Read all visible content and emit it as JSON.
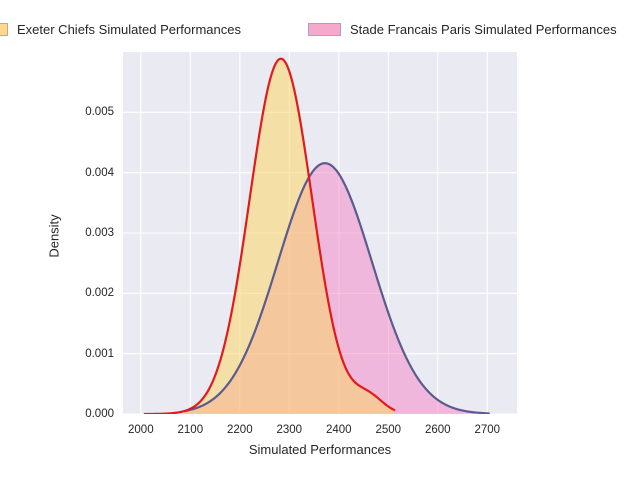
{
  "legend": {
    "items": [
      {
        "label": "Exeter Chiefs Simulated Performances",
        "swatch_fill": "#fcd98e",
        "swatch_border": "#f19089"
      },
      {
        "label": "Stade Francais Paris Simulated Performances",
        "swatch_fill": "#f7a9cb",
        "swatch_border": "#aba1c6"
      }
    ]
  },
  "chart_data": {
    "type": "area",
    "subtype": "kde-density",
    "title": "",
    "xlabel": "Simulated Performances",
    "ylabel": "Density",
    "x_ticks": [
      "2000",
      "2100",
      "2200",
      "2300",
      "2400",
      "2500",
      "2600",
      "2700"
    ],
    "x_tick_values": [
      2000,
      2100,
      2200,
      2300,
      2400,
      2500,
      2600,
      2700
    ],
    "y_ticks": [
      "0.000",
      "0.001",
      "0.002",
      "0.003",
      "0.004",
      "0.005"
    ],
    "y_tick_values": [
      0.0,
      0.001,
      0.002,
      0.003,
      0.004,
      0.005
    ],
    "xlim": [
      1964,
      2760
    ],
    "ylim": [
      0,
      0.006
    ],
    "grid": true,
    "plot_bg": "#eaeaf2",
    "grid_color": "#ffffff",
    "legend_position": "top",
    "series": [
      {
        "name": "Exeter Chiefs Simulated Performances",
        "line_color": "#e31a1c",
        "fill_color": "#fbd567",
        "fill_opacity": 0.55,
        "range": [
          2008,
          2512
        ],
        "peak": {
          "x": 2285,
          "density": 0.0058
        },
        "mixture": [
          {
            "mean": 2283,
            "sd": 63,
            "weight": 0.93
          },
          {
            "mean": 2460,
            "sd": 30,
            "weight": 0.02
          }
        ],
        "points": {
          "x": [
            2000,
            2050,
            2100,
            2150,
            2200,
            2250,
            2285,
            2300,
            2350,
            2400,
            2450,
            2500
          ],
          "density": [
            0,
            3e-05,
            0.0001,
            0.0006,
            0.0025,
            0.0051,
            0.0058,
            0.0057,
            0.0034,
            0.001,
            0.0004,
            0.0001
          ]
        }
      },
      {
        "name": "Stade Francais Paris Simulated Performances",
        "line_color": "#5b5b8f",
        "fill_color": "#f37bbf",
        "fill_opacity": 0.45,
        "range": [
          2088,
          2703
        ],
        "peak": {
          "x": 2372,
          "density": 0.0042
        },
        "mixture": [
          {
            "mean": 2372,
            "sd": 95,
            "weight": 0.99
          }
        ],
        "points": {
          "x": [
            2100,
            2150,
            2200,
            2250,
            2300,
            2372,
            2400,
            2450,
            2500,
            2550,
            2600,
            2650,
            2700
          ],
          "density": [
            0.0001,
            0.0003,
            0.0008,
            0.0018,
            0.0031,
            0.0042,
            0.004,
            0.003,
            0.0017,
            0.0007,
            0.0002,
            0.0001,
            0
          ]
        }
      }
    ]
  }
}
